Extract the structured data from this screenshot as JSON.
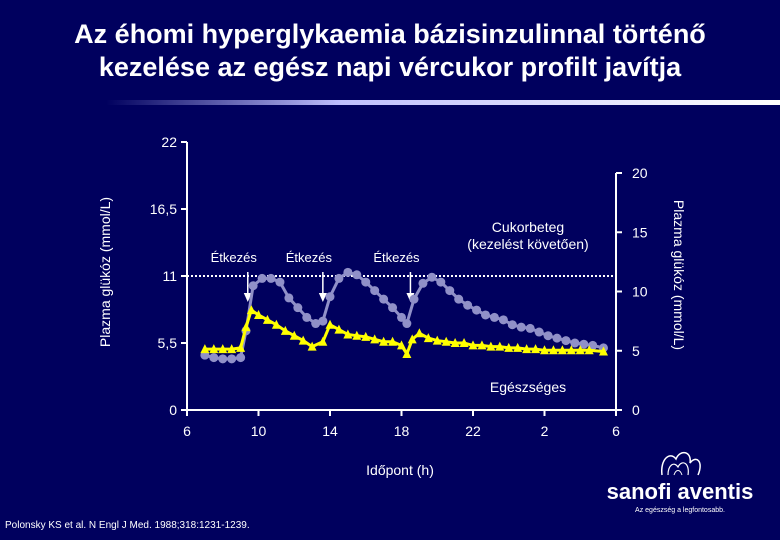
{
  "title": {
    "line1": "Az éhomi hyperglykaemia bázisinzulinnal történő",
    "line2": "kezelése az egész napi vércukor profilt javítja"
  },
  "reference": "Polonsky KS et al. N Engl J Med. 1988;318:1231-1239.",
  "brand": {
    "logo_text": "sanofi aventis",
    "tagline": "Az egészség a legfontosabb.",
    "logo_icon": "sanofi-aventis-bird-logo"
  },
  "colors": {
    "background": "#00005e",
    "diabetic_series": "#9090c8",
    "healthy_series": "#ffff00",
    "text": "#ffffff"
  },
  "chart_data": {
    "type": "line",
    "xlabel": "Időpont (h)",
    "ylabel_left": "Plazma glükóz (mmol/L)",
    "ylabel_right": "Plazma glükóz (mmol/L)",
    "x_ticks": [
      "6",
      "10",
      "14",
      "18",
      "22",
      "2",
      "6"
    ],
    "x_range": [
      6,
      30
    ],
    "y_left_ticks": [
      "0",
      "5,5",
      "11",
      "16,5",
      "22"
    ],
    "y_left_range": [
      0,
      22
    ],
    "y_right_ticks": [
      "0",
      "5",
      "10",
      "15",
      "20"
    ],
    "y_right_range": [
      0,
      20
    ],
    "reference_line_mmol": 11,
    "meal_annotations": [
      "Étkezés",
      "Étkezés",
      "Étkezés"
    ],
    "meal_times_h": [
      9.4,
      13.6,
      18.5
    ],
    "series": [
      {
        "name": "Cukorbeteg (kezelést követően)",
        "marker": "circle",
        "x": [
          7,
          7.5,
          8,
          8.5,
          9,
          9.3,
          9.7,
          10.2,
          10.7,
          11.2,
          11.7,
          12.2,
          12.7,
          13.2,
          13.6,
          14,
          14.5,
          15,
          15.5,
          16,
          16.5,
          17,
          17.5,
          18,
          18.3,
          18.7,
          19.2,
          19.7,
          20.2,
          20.7,
          21.2,
          21.7,
          22.2,
          22.7,
          23.2,
          23.7,
          24.2,
          24.7,
          25.2,
          25.7,
          26.2,
          26.7,
          27.2,
          27.7,
          28.2,
          28.7,
          29.3
        ],
        "y": [
          4.5,
          4.3,
          4.2,
          4.2,
          4.3,
          6.5,
          10.2,
          10.8,
          10.8,
          10.5,
          9.2,
          8.4,
          7.6,
          7.1,
          7.3,
          9.3,
          10.8,
          11.3,
          11.1,
          10.5,
          9.8,
          9.1,
          8.4,
          7.6,
          7.1,
          9.1,
          10.4,
          10.9,
          10.5,
          9.8,
          9.1,
          8.6,
          8.2,
          7.8,
          7.6,
          7.4,
          7.0,
          6.8,
          6.7,
          6.4,
          6.1,
          5.9,
          5.7,
          5.5,
          5.4,
          5.3,
          5.1
        ]
      },
      {
        "name": "Egészséges",
        "marker": "triangle",
        "x": [
          7,
          7.5,
          8,
          8.5,
          9,
          9.3,
          9.6,
          10,
          10.5,
          11,
          11.5,
          12,
          12.5,
          13,
          13.6,
          14,
          14.5,
          15,
          15.5,
          16,
          16.5,
          17,
          17.5,
          18,
          18.3,
          18.6,
          19,
          19.5,
          20,
          20.5,
          21,
          21.5,
          22,
          22.5,
          23,
          23.5,
          24,
          24.5,
          25,
          25.5,
          26,
          26.5,
          27,
          27.5,
          28,
          28.5,
          29.3
        ],
        "y": [
          5.0,
          5.0,
          5.0,
          5.0,
          5.1,
          6.8,
          8.2,
          7.8,
          7.4,
          7.0,
          6.5,
          6.1,
          5.7,
          5.2,
          5.6,
          7.0,
          6.6,
          6.2,
          6.1,
          6.0,
          5.8,
          5.6,
          5.6,
          5.3,
          4.6,
          5.8,
          6.3,
          5.9,
          5.7,
          5.6,
          5.5,
          5.5,
          5.3,
          5.3,
          5.2,
          5.2,
          5.1,
          5.1,
          5.0,
          5.0,
          4.9,
          4.9,
          4.9,
          4.9,
          4.9,
          4.9,
          4.8
        ]
      }
    ],
    "grid": false,
    "legend": "inline labels"
  }
}
